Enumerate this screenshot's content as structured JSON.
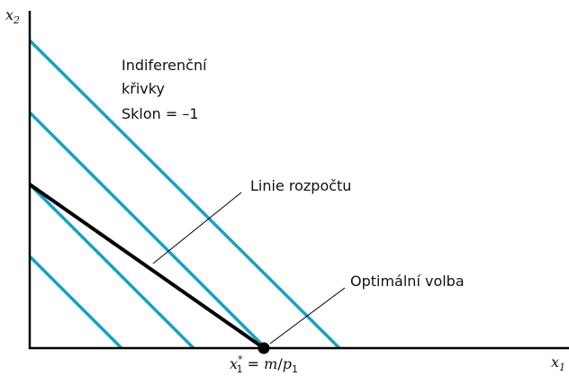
{
  "axes": {
    "y_label": {
      "base": "x",
      "sub": "2"
    },
    "x_label": {
      "base": "x",
      "sub": "1"
    }
  },
  "annotations": {
    "indifference": [
      "Indiferenční",
      "křivky"
    ],
    "slope": "Sklon = –1",
    "budget": "Linie rozpočtu",
    "optimum": "Optimální volba"
  },
  "optimum_label": {
    "base": "x",
    "sub": "1",
    "sup": "*",
    "eq": " = ",
    "m": "m",
    "slash": "/",
    "p": "p",
    "psub": "1"
  }
}
